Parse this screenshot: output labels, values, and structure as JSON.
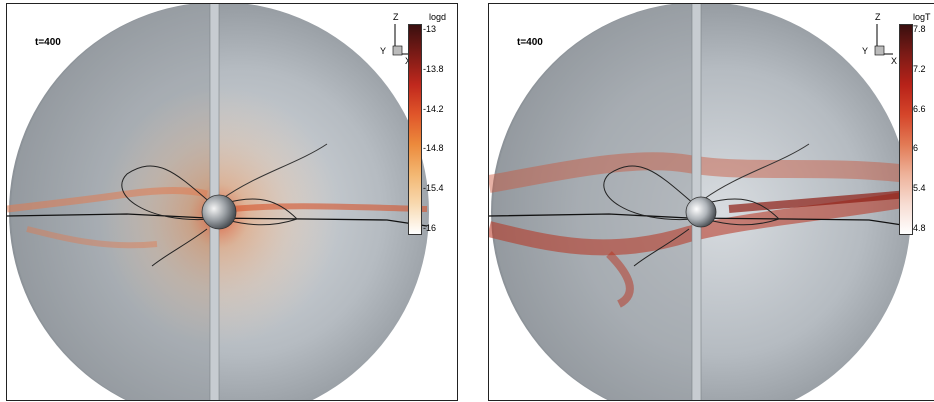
{
  "panels": [
    {
      "time_label": "t=400",
      "colorbar": {
        "title": "logd",
        "ticks": [
          "-13",
          "-13.8",
          "-14.2",
          "-14.8",
          "-15.4",
          "-16"
        ],
        "colors": [
          "#3a0f0f",
          "#7d1b16",
          "#c0281d",
          "#e0562a",
          "#ec8a3c",
          "#f3b772",
          "#f8d9b0",
          "#ffffff"
        ]
      },
      "axis_labels": {
        "z": "Z",
        "x": "X",
        "y": "Y"
      },
      "field_color": "#e05a30"
    },
    {
      "time_label": "t=400",
      "colorbar": {
        "title": "logT",
        "ticks": [
          "7.8",
          "7.2",
          "6.6",
          "6",
          "5.4",
          "4.8"
        ],
        "colors": [
          "#3a0f0f",
          "#7d1b16",
          "#b72219",
          "#d5452a",
          "#e27a55",
          "#eeb29a",
          "#f7dcd2",
          "#ffffff"
        ]
      },
      "axis_labels": {
        "z": "Z",
        "x": "X",
        "y": "Y"
      },
      "field_color": "#c23a22"
    }
  ]
}
